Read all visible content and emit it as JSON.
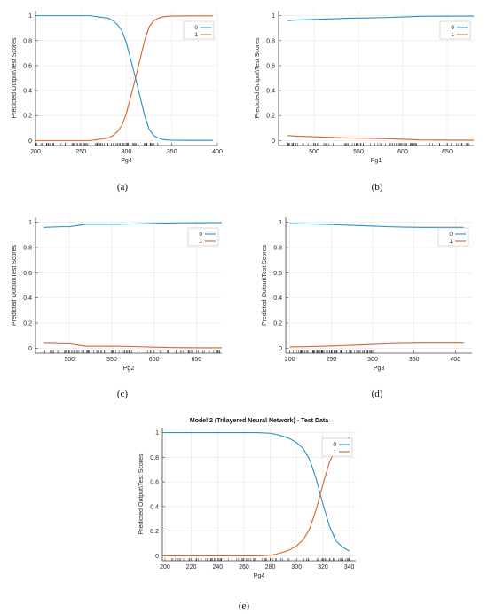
{
  "figure": {
    "captions": [
      "(a)",
      "(b)",
      "(c)",
      "(d)",
      "(e)"
    ]
  },
  "colors": {
    "series0": "#2b8fc4",
    "series1": "#d9622b",
    "grid": "#e6e6e6",
    "axis": "#404040"
  },
  "chart_data": [
    {
      "id": "a",
      "type": "line",
      "caption": "(a)",
      "title": "",
      "xlabel": "Pg4",
      "ylabel": "Predicted Output\\Test Scores",
      "xlim": [
        200,
        400
      ],
      "ylim": [
        0,
        1
      ],
      "xticks": [
        200,
        250,
        300,
        350,
        400
      ],
      "yticks": [
        0,
        0.2,
        0.4,
        0.6,
        0.8,
        1
      ],
      "legend": "top-right",
      "grid": true,
      "rug": [
        200,
        338
      ],
      "series": [
        {
          "name": "0",
          "x": [
            200,
            220,
            240,
            260,
            270,
            280,
            285,
            290,
            295,
            300,
            305,
            310,
            315,
            320,
            325,
            330,
            335,
            340,
            345,
            350,
            360,
            370,
            380,
            395
          ],
          "y": [
            1,
            1,
            1,
            1,
            0.99,
            0.98,
            0.96,
            0.93,
            0.88,
            0.78,
            0.64,
            0.5,
            0.35,
            0.2,
            0.09,
            0.04,
            0.02,
            0.01,
            0.005,
            0.003,
            0.002,
            0.001,
            0.001,
            0.001
          ]
        },
        {
          "name": "1",
          "x": [
            200,
            220,
            240,
            260,
            270,
            280,
            285,
            290,
            295,
            300,
            305,
            310,
            315,
            320,
            325,
            330,
            335,
            340,
            345,
            350,
            360,
            370,
            380,
            395
          ],
          "y": [
            0,
            0,
            0,
            0,
            0.01,
            0.02,
            0.04,
            0.07,
            0.12,
            0.22,
            0.36,
            0.5,
            0.65,
            0.8,
            0.91,
            0.96,
            0.98,
            0.99,
            0.995,
            0.997,
            0.998,
            0.999,
            0.999,
            0.999
          ]
        }
      ]
    },
    {
      "id": "b",
      "type": "line",
      "caption": "(b)",
      "title": "",
      "xlabel": "Pg1",
      "ylabel": "Predicted Output\\Test Scores",
      "xlim": [
        460,
        680
      ],
      "ylim": [
        0,
        1
      ],
      "xticks": [
        500,
        550,
        600,
        650
      ],
      "yticks": [
        0,
        0.2,
        0.4,
        0.6,
        0.8,
        1
      ],
      "legend": "top-right",
      "grid": true,
      "rug": [
        470,
        680
      ],
      "series": [
        {
          "name": "0",
          "x": [
            470,
            480,
            500,
            520,
            540,
            560,
            580,
            600,
            620,
            640,
            660,
            680
          ],
          "y": [
            0.96,
            0.965,
            0.97,
            0.975,
            0.98,
            0.982,
            0.985,
            0.99,
            0.995,
            0.996,
            0.997,
            0.997
          ]
        },
        {
          "name": "1",
          "x": [
            470,
            480,
            500,
            520,
            540,
            560,
            580,
            600,
            620,
            640,
            660,
            680
          ],
          "y": [
            0.04,
            0.035,
            0.03,
            0.025,
            0.02,
            0.018,
            0.015,
            0.01,
            0.005,
            0.004,
            0.003,
            0.003
          ]
        }
      ]
    },
    {
      "id": "c",
      "type": "line",
      "caption": "(c)",
      "title": "",
      "xlabel": "Pg2",
      "ylabel": "Predicted Output\\Test Scores",
      "xlim": [
        460,
        680
      ],
      "ylim": [
        0,
        1
      ],
      "xticks": [
        500,
        550,
        600,
        650
      ],
      "yticks": [
        0,
        0.2,
        0.4,
        0.6,
        0.8,
        1
      ],
      "legend": "top-right",
      "grid": true,
      "rug": [
        470,
        680
      ],
      "series": [
        {
          "name": "0",
          "x": [
            470,
            490,
            500,
            510,
            520,
            540,
            560,
            580,
            600,
            620,
            640,
            660,
            680
          ],
          "y": [
            0.96,
            0.965,
            0.965,
            0.975,
            0.985,
            0.985,
            0.985,
            0.988,
            0.992,
            0.995,
            0.996,
            0.997,
            0.997
          ]
        },
        {
          "name": "1",
          "x": [
            470,
            490,
            500,
            510,
            520,
            540,
            560,
            580,
            600,
            620,
            640,
            660,
            680
          ],
          "y": [
            0.04,
            0.035,
            0.035,
            0.025,
            0.015,
            0.015,
            0.015,
            0.012,
            0.008,
            0.005,
            0.004,
            0.003,
            0.003
          ]
        }
      ]
    },
    {
      "id": "d",
      "type": "line",
      "caption": "(d)",
      "title": "",
      "xlabel": "Pg3",
      "ylabel": "Predicted Output\\Test Scores",
      "xlim": [
        195,
        420
      ],
      "ylim": [
        0,
        1
      ],
      "xticks": [
        200,
        250,
        300,
        350,
        400
      ],
      "yticks": [
        0,
        0.2,
        0.4,
        0.6,
        0.8,
        1
      ],
      "legend": "top-right",
      "grid": true,
      "rug": [
        200,
        300
      ],
      "series": [
        {
          "name": "0",
          "x": [
            200,
            220,
            240,
            260,
            280,
            300,
            320,
            340,
            360,
            380,
            400,
            410
          ],
          "y": [
            0.99,
            0.988,
            0.985,
            0.98,
            0.975,
            0.97,
            0.965,
            0.962,
            0.96,
            0.96,
            0.96,
            0.96
          ]
        },
        {
          "name": "1",
          "x": [
            200,
            220,
            240,
            260,
            280,
            300,
            320,
            340,
            360,
            380,
            400,
            410
          ],
          "y": [
            0.01,
            0.012,
            0.015,
            0.02,
            0.025,
            0.03,
            0.035,
            0.038,
            0.04,
            0.04,
            0.04,
            0.04
          ]
        }
      ]
    },
    {
      "id": "e",
      "type": "line",
      "caption": "(e)",
      "title": "Model 2 (Trilayered Neural Network) - Test Data",
      "xlabel": "Pg4",
      "ylabel": "Predicted Output\\Test Scores",
      "xlim": [
        198,
        345
      ],
      "ylim": [
        0,
        1
      ],
      "xticks": [
        200,
        220,
        240,
        260,
        280,
        300,
        320,
        340
      ],
      "yticks": [
        0,
        0.2,
        0.4,
        0.6,
        0.8,
        1
      ],
      "legend": "top-right",
      "grid": true,
      "rug": [
        205,
        340
      ],
      "series": [
        {
          "name": "0",
          "x": [
            200,
            220,
            240,
            260,
            270,
            280,
            285,
            290,
            295,
            300,
            305,
            310,
            315,
            320,
            325,
            330,
            335,
            340
          ],
          "y": [
            1,
            1,
            1,
            1,
            1,
            0.995,
            0.985,
            0.97,
            0.95,
            0.92,
            0.87,
            0.78,
            0.62,
            0.42,
            0.24,
            0.12,
            0.07,
            0.04
          ]
        },
        {
          "name": "1",
          "x": [
            200,
            220,
            240,
            260,
            270,
            280,
            285,
            290,
            295,
            300,
            305,
            310,
            315,
            320,
            325,
            330,
            335,
            340
          ],
          "y": [
            0,
            0,
            0,
            0,
            0,
            0.005,
            0.015,
            0.03,
            0.05,
            0.08,
            0.13,
            0.22,
            0.38,
            0.58,
            0.76,
            0.88,
            0.93,
            0.96
          ]
        }
      ]
    }
  ]
}
